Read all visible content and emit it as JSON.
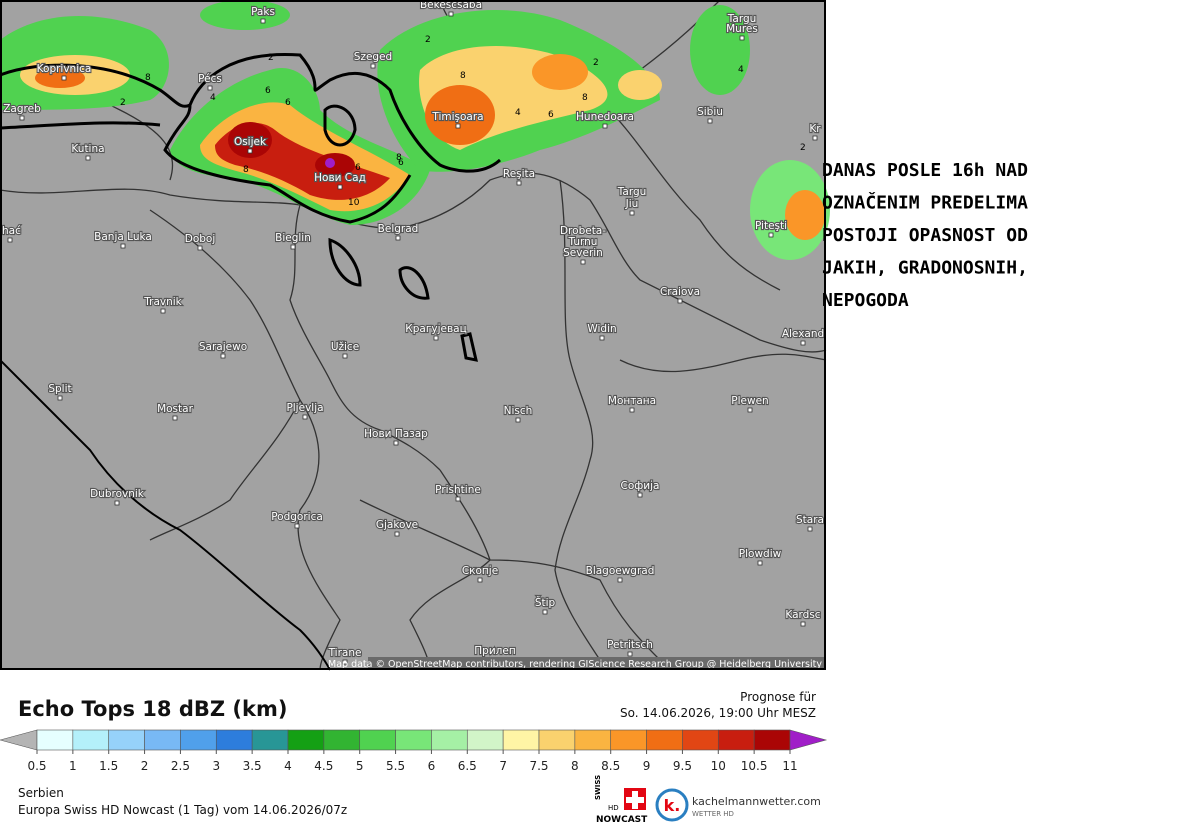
{
  "map": {
    "cities": [
      "Paks",
      "Békéscsaba",
      "Targu",
      "Mures",
      "Koprivnica",
      "Pécs",
      "Szeged",
      "Zagreb",
      "Timişoara",
      "Hunedoara",
      "Sibiu",
      "Kutina",
      "Osijek",
      "Нови Сад",
      "Reşita",
      "Targu",
      "Jiu",
      "Piteşti",
      "ihać",
      "Banja Luka",
      "Doboj",
      "Bieglin",
      "Belgrad",
      "Drobeta-",
      "Turnu",
      "Severin",
      "Craiova",
      "Travnik",
      "Крагујевац",
      "Sarajewo",
      "Užice",
      "Widin",
      "Alexand",
      "Split",
      "Mostar",
      "Pljevlja",
      "Nisch",
      "Монтана",
      "Plewen",
      "Нови Пазар",
      "Софија",
      "Prishtine",
      "Dubrovnik",
      "Podgorica",
      "Gjakove",
      "Stara",
      "Plowdiw",
      "Скопје",
      "Blagoewgrad",
      "Štip",
      "Kardsc",
      "Petritsch",
      "Прилеп",
      "Tirane",
      "Kr"
    ],
    "contour_labels": [
      "2",
      "6",
      "8",
      "6",
      "4",
      "2",
      "8",
      "8",
      "6",
      "10",
      "6",
      "8",
      "2",
      "4",
      "6",
      "8",
      "2",
      "4",
      "2"
    ],
    "attribution": "Map data © OpenStreetMap contributors, rendering GIScience Research Group @ Heidelberg University"
  },
  "annotation": [
    "DANAS POSLE 16h NAD",
    "OZNAČENIM PREDELIMA",
    "POSTOJI OPASNOST OD",
    "JAKIH, GRADONOSNIH,",
    "NEPOGODA"
  ],
  "legend": {
    "title": "Echo Tops 18 dBZ (km)",
    "ticks": [
      0.5,
      1,
      1.5,
      2,
      2.5,
      3,
      3.5,
      4,
      4.5,
      5,
      5.5,
      6,
      6.5,
      7,
      7.5,
      8,
      8.5,
      9,
      9.5,
      10,
      10.5,
      11
    ],
    "colors": [
      "#e6ffff",
      "#b4f0fa",
      "#96d2fa",
      "#78b9f5",
      "#50a0eb",
      "#2d7ddc",
      "#289696",
      "#14a014",
      "#32b432",
      "#50d250",
      "#78e678",
      "#a5f0a5",
      "#d2f5c8",
      "#fff5a5",
      "#fad26e",
      "#fab441",
      "#fa9628",
      "#f06e14",
      "#e14614",
      "#c81e0f",
      "#aa0505"
    ],
    "under_color": "#b4b4b4",
    "over_color": "#a01ec8"
  },
  "forecast": {
    "label": "Prognose für",
    "time": "So. 14.06.2026, 19:00 Uhr MESZ"
  },
  "footer": {
    "region": "Serbien",
    "model": "Europa Swiss HD Nowcast (1 Tag) vom 14.06.2026/07z",
    "logo1": "SWISS",
    "logo1b": "HD",
    "logo1c": "NOWCAST",
    "logo2": "kachelmannwetter.com",
    "logo2b": "WETTER HD"
  }
}
